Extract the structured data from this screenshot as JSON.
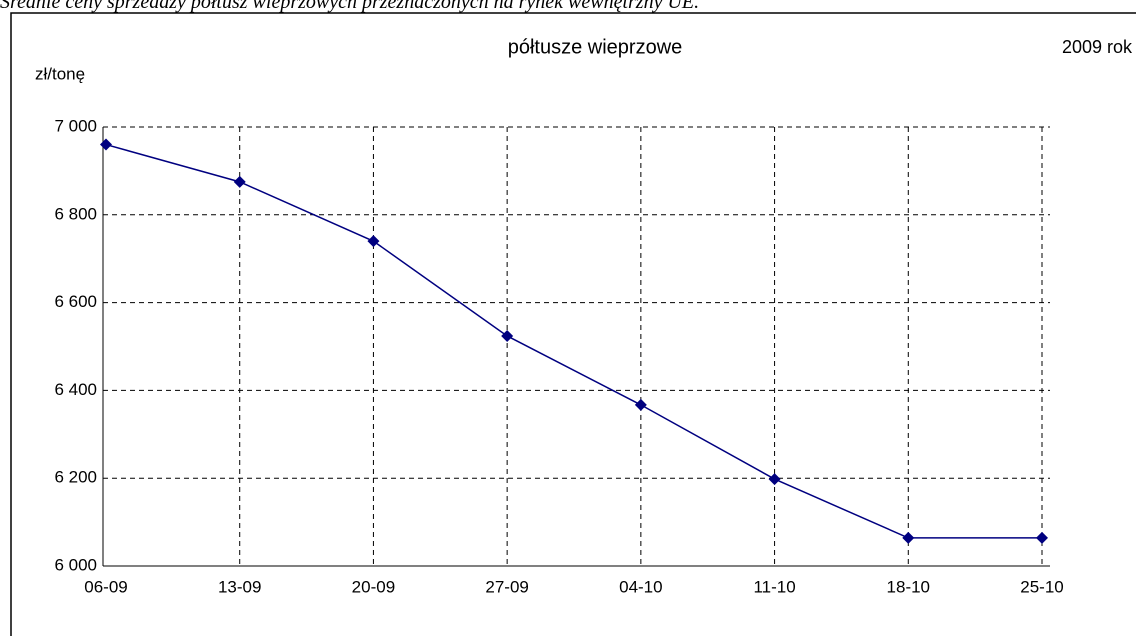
{
  "chart_data": {
    "type": "line",
    "caption": "Średnie ceny sprzedaży półtusz wieprzowych przeznaczonych na rynek wewnętrzny UE.",
    "title": "półtusze wieprzowe",
    "annotation": "2009 rok",
    "y_label": "zł/tonę",
    "categories": [
      "06-09",
      "13-09",
      "20-09",
      "27-09",
      "04-10",
      "11-10",
      "18-10",
      "25-10"
    ],
    "series": [
      {
        "name": "półtusze wieprzowe",
        "color": "#000080",
        "values": [
          6960,
          6875,
          6740,
          6524,
          6367,
          6198,
          6064,
          6064
        ]
      }
    ],
    "ylim": [
      6000,
      7000
    ],
    "yticks": [
      {
        "value": 6000,
        "label": "6 000"
      },
      {
        "value": 6200,
        "label": "6 200"
      },
      {
        "value": 6400,
        "label": "6 400"
      },
      {
        "value": 6600,
        "label": "6 600"
      },
      {
        "value": 6800,
        "label": "6 800"
      },
      {
        "value": 7000,
        "label": "7 000"
      }
    ],
    "grid": true
  }
}
